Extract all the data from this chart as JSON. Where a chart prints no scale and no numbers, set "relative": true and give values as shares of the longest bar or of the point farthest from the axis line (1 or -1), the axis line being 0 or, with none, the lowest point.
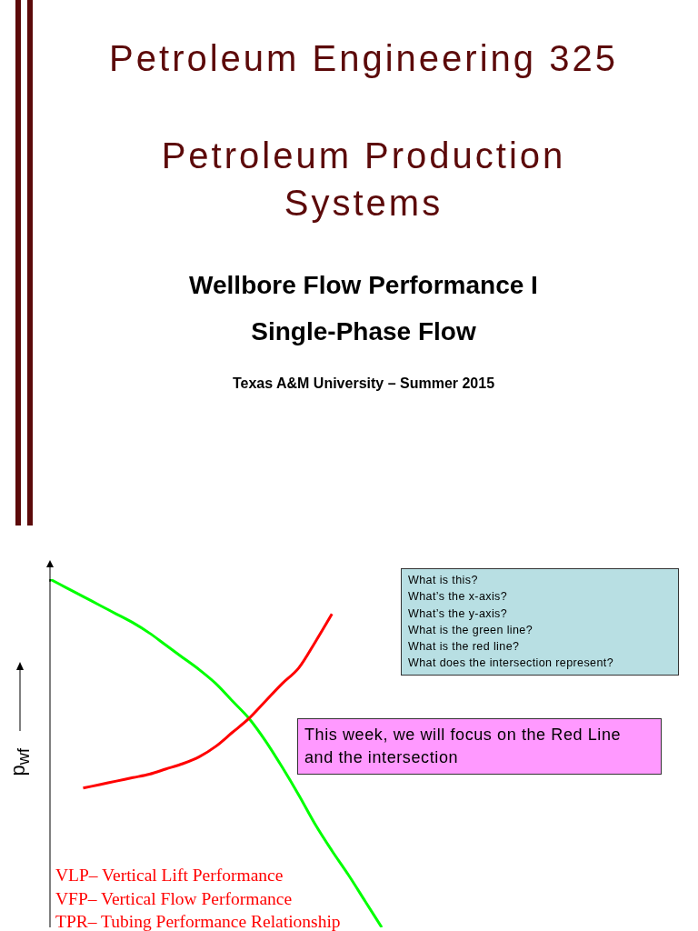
{
  "chart_data": {
    "type": "line",
    "relative": true,
    "title": "Petroleum Engineering 325",
    "subtitle": "Petroleum Production Systems",
    "ylabel": "p$_{wf}$",
    "categories": [
      null,
      null,
      null,
      null,
      null,
      null,
      null,
      null,
      null,
      null,
      null,
      null,
      null,
      null,
      null,
      null,
      null,
      null,
      null,
      null,
      null
    ],
    "series": [
      {
        "color": "#00ff00",
        "values": [
          1.0,
          0.975,
          0.95,
          0.925,
          0.9,
          0.875,
          0.845,
          0.81,
          0.775,
          0.74,
          0.7,
          0.65,
          0.6,
          0.535,
          0.46,
          0.38,
          0.295,
          0.22,
          0.15,
          0.075,
          0.0
        ]
      },
      {
        "color": "#ff0000",
        "values": [
          null,
          null,
          0.4,
          0.41,
          0.42,
          0.43,
          0.44,
          0.455,
          0.47,
          0.49,
          0.52,
          0.56,
          0.6,
          0.65,
          0.7,
          0.745,
          0.82,
          0.9,
          null,
          null,
          null
        ]
      }
    ],
    "annotations": [
      "Wellbore Flow Performance I",
      "Single-Phase Flow",
      "Texas A&M University – Summer 2015",
      "What is this?",
      "What’s the x-axis?",
      "What’s the y-axis?",
      "What is the green line?",
      "What is the red line?",
      "What does the intersection represent?",
      "This week, we will focus on the Red Line and the intersection",
      "VLP– Vertical Lift Performance",
      "VFP– Vertical Flow Performance",
      "TPR– Tubing Performance Relationship"
    ],
    "grid": false,
    "marker": "none",
    "line_style": "solid"
  }
}
